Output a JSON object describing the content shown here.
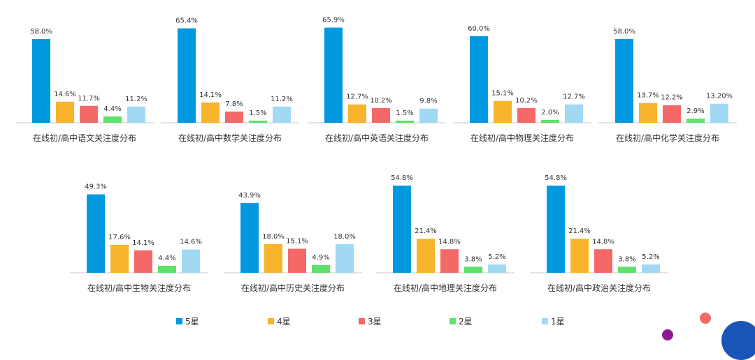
{
  "chart_data": [
    {
      "type": "bar",
      "title": "在线初/高中语文关注度分布",
      "categories": [
        "5星",
        "4星",
        "3星",
        "2星",
        "1星"
      ],
      "values": [
        58.0,
        14.6,
        11.7,
        4.4,
        11.2
      ],
      "labels": [
        "58.0%",
        "14.6%",
        "11.7%",
        "4.4%",
        "11.2%"
      ],
      "ylim": [
        0,
        70
      ]
    },
    {
      "type": "bar",
      "title": "在线初/高中数学关注度分布",
      "categories": [
        "5星",
        "4星",
        "3星",
        "2星",
        "1星"
      ],
      "values": [
        65.4,
        14.1,
        7.8,
        1.5,
        11.2
      ],
      "labels": [
        "65.4%",
        "14.1%",
        "7.8%",
        "1.5%",
        "11.2%"
      ],
      "ylim": [
        0,
        70
      ]
    },
    {
      "type": "bar",
      "title": "在线初/高中英语关注度分布",
      "categories": [
        "5星",
        "4星",
        "3星",
        "2星",
        "1星"
      ],
      "values": [
        65.9,
        12.7,
        10.2,
        1.5,
        9.8
      ],
      "labels": [
        "65.9%",
        "12.7%",
        "10.2%",
        "1.5%",
        "9.8%"
      ],
      "ylim": [
        0,
        70
      ]
    },
    {
      "type": "bar",
      "title": "在线初/高中物理关注度分布",
      "categories": [
        "5星",
        "4星",
        "3星",
        "2星",
        "1星"
      ],
      "values": [
        60.0,
        15.1,
        10.2,
        2.0,
        12.7
      ],
      "labels": [
        "60.0%",
        "15.1%",
        "10.2%",
        "2.0%",
        "12.7%"
      ],
      "ylim": [
        0,
        70
      ]
    },
    {
      "type": "bar",
      "title": "在线初/高中化学关注度分布",
      "categories": [
        "5星",
        "4星",
        "3星",
        "2星",
        "1星"
      ],
      "values": [
        58.0,
        13.7,
        12.2,
        2.9,
        13.2
      ],
      "labels": [
        "58.0%",
        "13.7%",
        "12.2%",
        "2.9%",
        "13.20%"
      ],
      "ylim": [
        0,
        70
      ]
    },
    {
      "type": "bar",
      "title": "在线初/高中生物关注度分布",
      "categories": [
        "5星",
        "4星",
        "3星",
        "2星",
        "1星"
      ],
      "values": [
        49.3,
        17.6,
        14.1,
        4.4,
        14.6
      ],
      "labels": [
        "49.3%",
        "17.6%",
        "14.1%",
        "4.4%",
        "14.6%"
      ],
      "ylim": [
        0,
        60
      ]
    },
    {
      "type": "bar",
      "title": "在线初/高中历史关注度分布",
      "categories": [
        "5星",
        "4星",
        "3星",
        "2星",
        "1星"
      ],
      "values": [
        43.9,
        18.0,
        15.1,
        4.9,
        18.0
      ],
      "labels": [
        "43.9%",
        "18.0%",
        "15.1%",
        "4.9%",
        "18.0%"
      ],
      "ylim": [
        0,
        60
      ]
    },
    {
      "type": "bar",
      "title": "在线初/高中地理关注度分布",
      "categories": [
        "5星",
        "4星",
        "3星",
        "2星",
        "1星"
      ],
      "values": [
        54.8,
        21.4,
        14.8,
        3.8,
        5.2
      ],
      "labels": [
        "54.8%",
        "21.4%",
        "14.8%",
        "3.8%",
        "5.2%"
      ],
      "ylim": [
        0,
        60
      ]
    },
    {
      "type": "bar",
      "title": "在线初/高中政治关注度分布",
      "categories": [
        "5星",
        "4星",
        "3星",
        "2星",
        "1星"
      ],
      "values": [
        54.8,
        21.4,
        14.8,
        3.8,
        5.2
      ],
      "labels": [
        "54.8%",
        "21.4%",
        "14.8%",
        "3.8%",
        "5.2%"
      ],
      "ylim": [
        0,
        60
      ]
    }
  ],
  "legend": [
    {
      "label": "5星",
      "color": "#0099e0"
    },
    {
      "label": "4星",
      "color": "#f7b42c"
    },
    {
      "label": "3星",
      "color": "#f46867"
    },
    {
      "label": "2星",
      "color": "#5ee06b"
    },
    {
      "label": "1星",
      "color": "#a1d8f4"
    }
  ],
  "decorations": {
    "dot_color_1": "#f46867",
    "dot_color_2": "#1a56b8",
    "dot_color_3": "#8b1a8f"
  }
}
